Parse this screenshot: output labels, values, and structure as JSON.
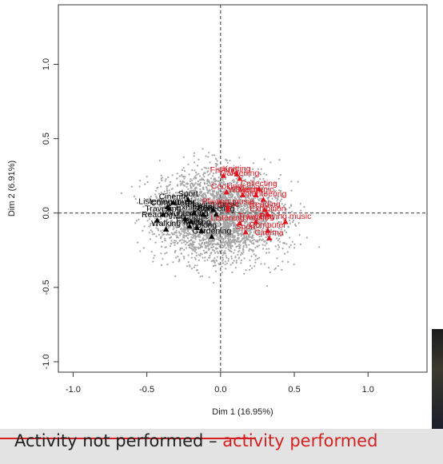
{
  "chart_data": {
    "type": "scatter",
    "xlabel": "Dim 1 (16.95%)",
    "ylabel": "Dim 2 (6.91%)",
    "xlim": [
      -1.1,
      1.4
    ],
    "ylim": [
      -1.07,
      1.4
    ],
    "x_ticks": [
      "-1.0",
      "-0.5",
      "0.0",
      "0.5",
      "1.0"
    ],
    "y_ticks": [
      "-1.0",
      "-0.5",
      "0.0",
      "0.5",
      "1.0"
    ],
    "reference_lines": {
      "x": 0,
      "y": 0,
      "style": "dashed"
    },
    "individuals_cloud": {
      "color": "#a6a6a6",
      "center": [
        0.0,
        -0.02
      ],
      "spread": [
        0.3,
        0.21
      ]
    },
    "series": [
      {
        "name": "Activity not performed",
        "color": "#000000",
        "points": [
          {
            "label": "Listening music",
            "x": -0.36,
            "y": 0.04
          },
          {
            "label": "Cinema",
            "x": -0.32,
            "y": 0.07
          },
          {
            "label": "Computer",
            "x": -0.35,
            "y": 0.03
          },
          {
            "label": "Sport",
            "x": -0.22,
            "y": 0.09
          },
          {
            "label": "Travelling",
            "x": -0.39,
            "y": -0.01
          },
          {
            "label": "Reading",
            "x": -0.43,
            "y": -0.05
          },
          {
            "label": "Volunteering",
            "x": -0.24,
            "y": -0.04
          },
          {
            "label": "Mechanic",
            "x": -0.2,
            "y": -0.06
          },
          {
            "label": "Walking",
            "x": -0.37,
            "y": -0.11
          },
          {
            "label": "Fishing",
            "x": -0.21,
            "y": -0.09
          },
          {
            "label": "Knitting",
            "x": -0.16,
            "y": -0.1
          },
          {
            "label": "Cooking",
            "x": -0.13,
            "y": -0.12
          },
          {
            "label": "Gardening",
            "x": -0.06,
            "y": -0.16
          },
          {
            "label": "Playing music",
            "x": -0.05,
            "y": 0.02
          },
          {
            "label": "Collecting",
            "x": -0.03,
            "y": -0.01
          },
          {
            "label": "Exhibition",
            "x": -0.18,
            "y": 0.0
          },
          {
            "label": "Show",
            "x": -0.12,
            "y": -0.01
          }
        ]
      },
      {
        "name": "activity performed",
        "color": "#e0141e",
        "points": [
          {
            "label": "Knitting",
            "x": 0.11,
            "y": 0.26
          },
          {
            "label": "Gardening",
            "x": 0.13,
            "y": 0.23
          },
          {
            "label": "Fishing",
            "x": 0.02,
            "y": 0.25
          },
          {
            "label": "Cooking",
            "x": 0.04,
            "y": 0.14
          },
          {
            "label": "Walking",
            "x": 0.15,
            "y": 0.12
          },
          {
            "label": "Mechanic",
            "x": 0.24,
            "y": 0.12
          },
          {
            "label": "Collecting",
            "x": 0.26,
            "y": 0.16
          },
          {
            "label": "Volunteering",
            "x": 0.29,
            "y": 0.09
          },
          {
            "label": "Playing music",
            "x": 0.05,
            "y": 0.04
          },
          {
            "label": "Reading",
            "x": 0.3,
            "y": 0.02
          },
          {
            "label": "Exhibition",
            "x": 0.32,
            "y": -0.01
          },
          {
            "label": "Playing music",
            "x": 0.44,
            "y": -0.06
          },
          {
            "label": "Listening music",
            "x": 0.13,
            "y": -0.07
          },
          {
            "label": "Travelling",
            "x": 0.24,
            "y": -0.06
          },
          {
            "label": "Sport",
            "x": 0.17,
            "y": -0.13
          },
          {
            "label": "Computer",
            "x": 0.32,
            "y": -0.12
          },
          {
            "label": "Cinema",
            "x": 0.33,
            "y": -0.17
          },
          {
            "label": "Show",
            "x": 0.05,
            "y": 0.02
          }
        ]
      }
    ],
    "legend_caption": {
      "not_performed": "Activity not performed",
      "dash": "–",
      "performed": "activity performed"
    }
  }
}
